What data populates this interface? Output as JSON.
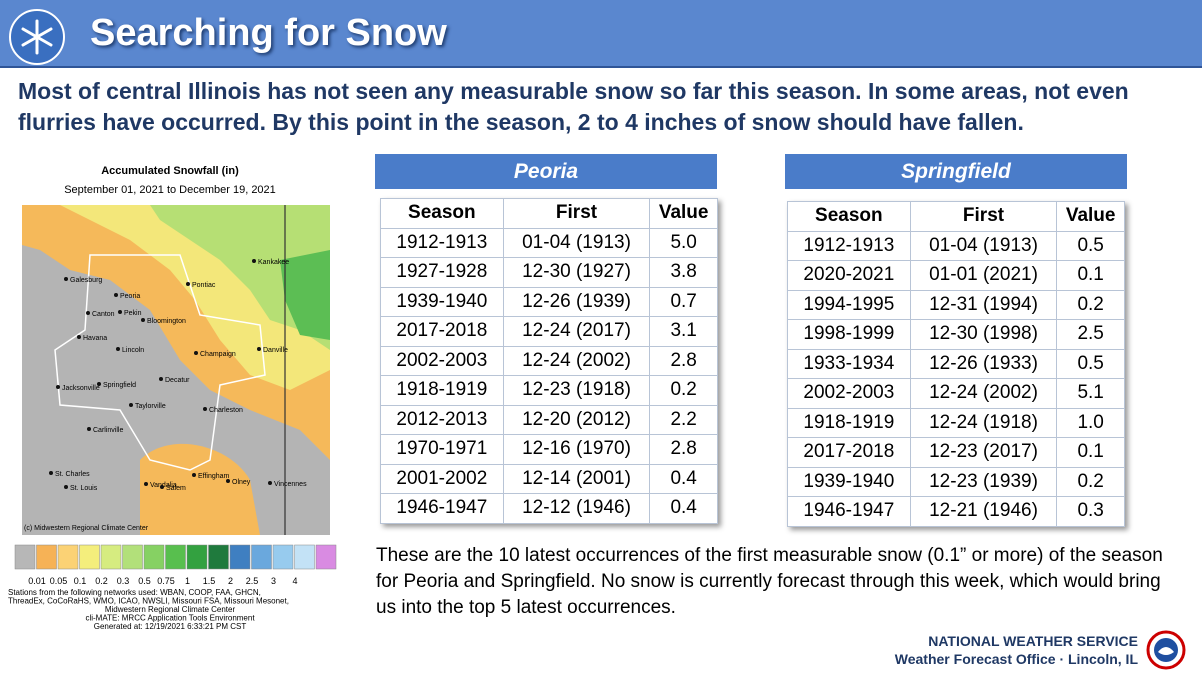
{
  "header": {
    "title": "Searching for Snow"
  },
  "intro": "Most of central Illinois has not seen any measurable snow so far this season. In some areas, not even flurries have occurred. By this point in the season, 2 to 4 inches of snow should have fallen.",
  "map": {
    "title": "Accumulated Snowfall (in)",
    "subtitle": "September 01, 2021 to December 19, 2021",
    "cities": [
      "Galesburg",
      "Peoria",
      "Canton",
      "Pekin",
      "Havana",
      "Bloomington",
      "Pontiac",
      "Kankakee",
      "Lincoln",
      "Champaign",
      "Danville",
      "Springfield",
      "Jacksonville",
      "Decatur",
      "Taylorville",
      "Charleston",
      "Carlinville",
      "Effingham",
      "Vandalia",
      "Olney",
      "Vincennes",
      "St. Charles",
      "St. Louis",
      "Salem"
    ],
    "credit": "(c) Midwestern Regional Climate Center",
    "legend": [
      "0.01",
      "0.05",
      "0.1",
      "0.2",
      "0.3",
      "0.5",
      "0.75",
      "1",
      "1.5",
      "2",
      "2.5",
      "3",
      "4"
    ],
    "notes": [
      "Stations from the following networks used: WBAN, COOP, FAA, GHCN,",
      "ThreadEx, CoCoRaHS, WMO, ICAO, NWSLI, Missouri FSA, Missouri Mesonet,",
      "Midwestern Regional Climate Center",
      "cli-MATE: MRCC Application Tools Environment",
      "Generated at: 12/19/2021 6:33:21 PM CST"
    ]
  },
  "tables": [
    {
      "title": "Peoria",
      "header": [
        "Season",
        "First",
        "Value"
      ],
      "rows": [
        [
          "1912-1913",
          "01-04 (1913)",
          "5.0"
        ],
        [
          "1927-1928",
          "12-30 (1927)",
          "3.8"
        ],
        [
          "1939-1940",
          "12-26 (1939)",
          "0.7"
        ],
        [
          "2017-2018",
          "12-24 (2017)",
          "3.1"
        ],
        [
          "2002-2003",
          "12-24 (2002)",
          "2.8"
        ],
        [
          "1918-1919",
          "12-23 (1918)",
          "0.2"
        ],
        [
          "2012-2013",
          "12-20 (2012)",
          "2.2"
        ],
        [
          "1970-1971",
          "12-16 (1970)",
          "2.8"
        ],
        [
          "2001-2002",
          "12-14 (2001)",
          "0.4"
        ],
        [
          "1946-1947",
          "12-12 (1946)",
          "0.4"
        ]
      ]
    },
    {
      "title": "Springfield",
      "header": [
        "Season",
        "First",
        "Value"
      ],
      "rows": [
        [
          "1912-1913",
          "01-04 (1913)",
          "0.5"
        ],
        [
          "2020-2021",
          "01-01 (2021)",
          "0.1"
        ],
        [
          "1994-1995",
          "12-31 (1994)",
          "0.2"
        ],
        [
          "1998-1999",
          "12-30 (1998)",
          "2.5"
        ],
        [
          "1933-1934",
          "12-26 (1933)",
          "0.5"
        ],
        [
          "2002-2003",
          "12-24 (2002)",
          "5.1"
        ],
        [
          "1918-1919",
          "12-24 (1918)",
          "1.0"
        ],
        [
          "2017-2018",
          "12-23 (2017)",
          "0.1"
        ],
        [
          "1939-1940",
          "12-23 (1939)",
          "0.2"
        ],
        [
          "1946-1947",
          "12-21 (1946)",
          "0.3"
        ]
      ]
    }
  ],
  "note": "These are the 10 latest occurrences of the first measurable snow (0.1” or more) of the season for Peoria and Springfield. No snow is currently forecast through this week, which would bring us into the top 5 latest occurrences.",
  "footer": {
    "org": "NATIONAL WEATHER SERVICE",
    "office": "Weather Forecast Office · Lincoln, IL"
  }
}
